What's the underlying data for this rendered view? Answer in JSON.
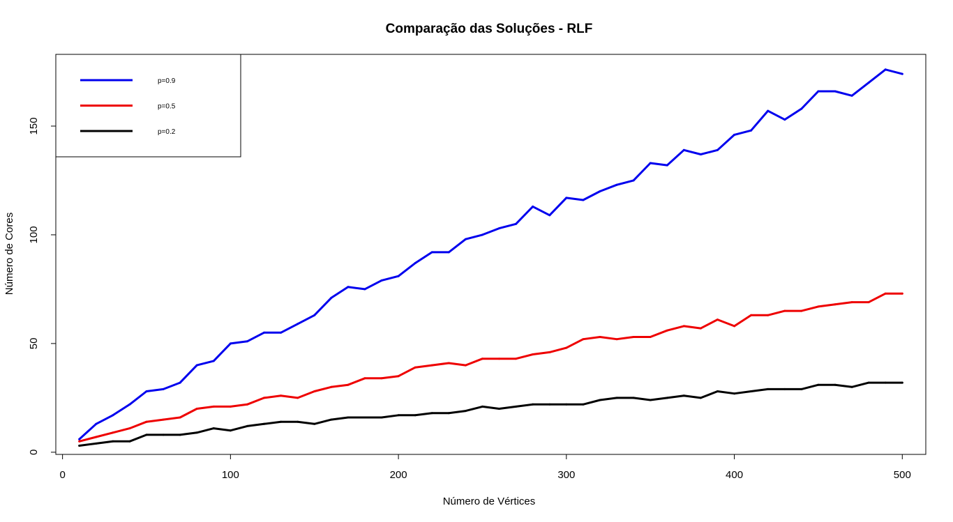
{
  "chart_data": {
    "type": "line",
    "title": "Comparação das Soluções - RLF",
    "xlabel": "Número de Vértices",
    "ylabel": "Número de Cores",
    "xlim": [
      -4,
      514
    ],
    "ylim": [
      -1,
      183
    ],
    "xticks": [
      0,
      100,
      200,
      300,
      400,
      500
    ],
    "yticks": [
      0,
      50,
      100,
      150
    ],
    "grid": false,
    "legend_position": "top-left",
    "x": [
      10,
      20,
      30,
      40,
      50,
      60,
      70,
      80,
      90,
      100,
      110,
      120,
      130,
      140,
      150,
      160,
      170,
      180,
      190,
      200,
      210,
      220,
      230,
      240,
      250,
      260,
      270,
      280,
      290,
      300,
      310,
      320,
      330,
      340,
      350,
      360,
      370,
      380,
      390,
      400,
      410,
      420,
      430,
      440,
      450,
      460,
      470,
      480,
      490,
      500
    ],
    "series": [
      {
        "name": "p=0.9",
        "color": "#0000ee",
        "values": [
          6,
          13,
          17,
          22,
          28,
          29,
          32,
          40,
          42,
          50,
          51,
          55,
          55,
          59,
          63,
          71,
          76,
          75,
          79,
          81,
          87,
          92,
          92,
          98,
          100,
          103,
          105,
          113,
          109,
          117,
          116,
          120,
          123,
          125,
          133,
          132,
          139,
          137,
          139,
          146,
          148,
          157,
          153,
          158,
          166,
          166,
          164,
          170,
          176,
          174
        ]
      },
      {
        "name": "p=0.5",
        "color": "#ee0000",
        "values": [
          5,
          7,
          9,
          11,
          14,
          15,
          16,
          20,
          21,
          21,
          22,
          25,
          26,
          25,
          28,
          30,
          31,
          34,
          34,
          35,
          39,
          40,
          41,
          40,
          43,
          43,
          43,
          45,
          46,
          48,
          52,
          53,
          52,
          53,
          53,
          56,
          58,
          57,
          61,
          58,
          63,
          63,
          65,
          65,
          67,
          68,
          69,
          69,
          73,
          73
        ]
      },
      {
        "name": "p=0.2",
        "color": "#000000",
        "values": [
          3,
          4,
          5,
          5,
          8,
          8,
          8,
          9,
          11,
          10,
          12,
          13,
          14,
          14,
          13,
          15,
          16,
          16,
          16,
          17,
          17,
          18,
          18,
          19,
          21,
          20,
          21,
          22,
          22,
          22,
          22,
          24,
          25,
          25,
          24,
          25,
          26,
          25,
          28,
          27,
          28,
          29,
          29,
          29,
          31,
          31,
          30,
          32,
          32,
          32
        ]
      }
    ]
  }
}
